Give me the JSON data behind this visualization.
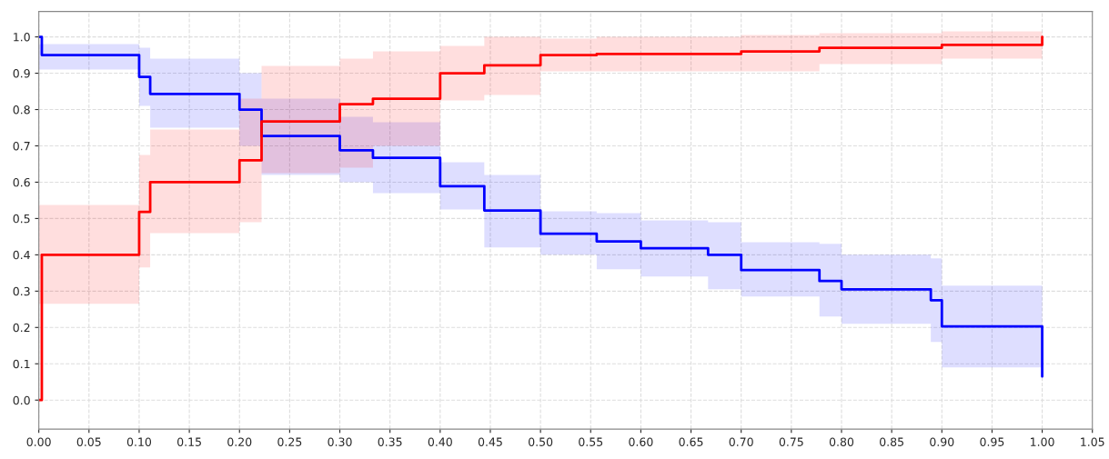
{
  "chart_data": {
    "type": "step",
    "xlim": [
      0,
      1.05
    ],
    "ylim": [
      -0.08,
      1.07
    ],
    "xticks": [
      {
        "value": 0,
        "label": "0.00"
      },
      {
        "value": 0.05,
        "label": "0.05"
      },
      {
        "value": 0.1,
        "label": "0.10"
      },
      {
        "value": 0.15,
        "label": "0.15"
      },
      {
        "value": 0.2,
        "label": "0.20"
      },
      {
        "value": 0.25,
        "label": "0.25"
      },
      {
        "value": 0.3,
        "label": "0.30"
      },
      {
        "value": 0.35,
        "label": "0.35"
      },
      {
        "value": 0.4,
        "label": "0.40"
      },
      {
        "value": 0.45,
        "label": "0.45"
      },
      {
        "value": 0.5,
        "label": "0.50"
      },
      {
        "value": 0.55,
        "label": "0.55"
      },
      {
        "value": 0.6,
        "label": "0.60"
      },
      {
        "value": 0.65,
        "label": "0.65"
      },
      {
        "value": 0.7,
        "label": "0.70"
      },
      {
        "value": 0.75,
        "label": "0.75"
      },
      {
        "value": 0.8,
        "label": "0.80"
      },
      {
        "value": 0.85,
        "label": "0.85"
      },
      {
        "value": 0.9,
        "label": "0.90"
      },
      {
        "value": 0.95,
        "label": "0.95"
      },
      {
        "value": 1.0,
        "label": "1.00"
      },
      {
        "value": 1.05,
        "label": "1.05"
      }
    ],
    "yticks": [
      {
        "value": 0,
        "label": "0.0"
      },
      {
        "value": 0.1,
        "label": "0.1"
      },
      {
        "value": 0.2,
        "label": "0.2"
      },
      {
        "value": 0.3,
        "label": "0.3"
      },
      {
        "value": 0.4,
        "label": "0.4"
      },
      {
        "value": 0.5,
        "label": "0.5"
      },
      {
        "value": 0.6,
        "label": "0.6"
      },
      {
        "value": 0.7,
        "label": "0.7"
      },
      {
        "value": 0.8,
        "label": "0.8"
      },
      {
        "value": 0.9,
        "label": "0.9"
      },
      {
        "value": 1.0,
        "label": "1.0"
      }
    ],
    "grid": true,
    "line_style": "solid",
    "marker": "none",
    "series": [
      {
        "color": "#0000ff",
        "x": [
          0,
          0.003,
          0.1,
          0.111,
          0.2,
          0.222,
          0.3,
          0.333,
          0.4,
          0.444,
          0.5,
          0.556,
          0.6,
          0.667,
          0.7,
          0.778,
          0.8,
          0.889,
          0.9,
          1.0
        ],
        "values": [
          1.0,
          0.95,
          0.89,
          0.843,
          0.8,
          0.727,
          0.688,
          0.667,
          0.589,
          0.522,
          0.458,
          0.437,
          0.418,
          0.4,
          0.358,
          0.328,
          0.305,
          0.275,
          0.203,
          0.065
        ],
        "lower": [
          0.91,
          0.91,
          0.81,
          0.75,
          0.7,
          0.62,
          0.6,
          0.57,
          0.525,
          0.42,
          0.4,
          0.36,
          0.34,
          0.305,
          0.285,
          0.23,
          0.21,
          0.16,
          0.09,
          0.09
        ],
        "upper": [
          0.98,
          0.98,
          0.97,
          0.94,
          0.9,
          0.83,
          0.78,
          0.765,
          0.655,
          0.62,
          0.52,
          0.515,
          0.495,
          0.49,
          0.435,
          0.43,
          0.4,
          0.39,
          0.315,
          0.315
        ]
      },
      {
        "color": "#ff0000",
        "x": [
          0,
          0.003,
          0.1,
          0.111,
          0.2,
          0.222,
          0.3,
          0.333,
          0.4,
          0.444,
          0.5,
          0.556,
          0.7,
          0.778,
          0.9,
          1.0
        ],
        "values": [
          0.0,
          0.4,
          0.518,
          0.6,
          0.66,
          0.767,
          0.815,
          0.83,
          0.9,
          0.922,
          0.95,
          0.953,
          0.96,
          0.97,
          0.978,
          1.0
        ],
        "lower": [
          0.265,
          0.265,
          0.365,
          0.46,
          0.49,
          0.625,
          0.64,
          0.7,
          0.825,
          0.84,
          0.905,
          0.905,
          0.905,
          0.925,
          0.94,
          0.94
        ],
        "upper": [
          0.537,
          0.537,
          0.675,
          0.745,
          0.83,
          0.92,
          0.94,
          0.96,
          0.975,
          1.0,
          0.995,
          1.0,
          1.005,
          1.01,
          1.015,
          1.015
        ]
      }
    ]
  }
}
